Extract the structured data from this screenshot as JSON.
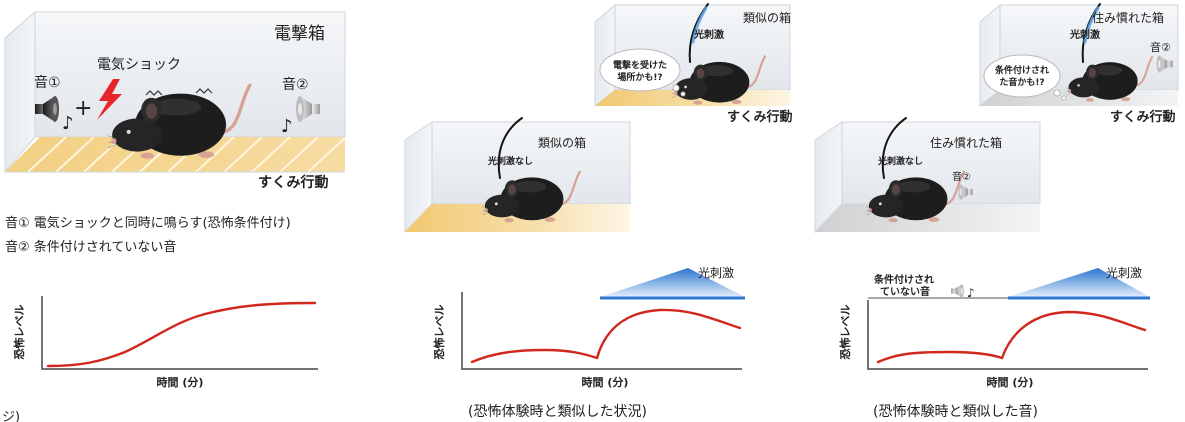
{
  "conditioning": {
    "box_label": "電撃箱",
    "shock_label": "電気ショック",
    "tone1_label": "音①",
    "tone2_label": "音②",
    "plus_sign": "+",
    "note_glyph": "♪",
    "freezing_label": "すくみ行動",
    "legend": [
      "音① 電気ショックと同時に鳴らす(恐怖条件付け)",
      "音② 条件付けされていない音"
    ]
  },
  "similar_box": {
    "light_on": {
      "box_label": "類似の箱",
      "light_label": "光刺激",
      "thought": [
        "電撃を受けた",
        "場所かも!?"
      ],
      "freezing_label": "すくみ行動"
    },
    "light_off": {
      "box_label": "類似の箱",
      "light_label": "光刺激なし"
    },
    "caption": "(恐怖体験時と類似した状況)"
  },
  "familiar_box": {
    "light_on": {
      "box_label": "住み慣れた箱",
      "light_label": "光刺激",
      "tone_label": "音②",
      "thought": [
        "条件付けされ",
        "た音かも!?"
      ],
      "freezing_label": "すくみ行動"
    },
    "light_off": {
      "box_label": "住み慣れた箱",
      "light_label": "光刺激なし",
      "tone_label": "音②"
    },
    "caption": "(恐怖体験時と類似した音)"
  },
  "plots": [
    {
      "ylabel": "恐怖レベル",
      "xlabel": "時間 (分)"
    },
    {
      "ylabel": "恐怖レベル",
      "xlabel": "時間 (分)",
      "stimulus_label": "光刺激"
    },
    {
      "ylabel": "恐怖レベル",
      "xlabel": "時間 (分)",
      "stimulus_label": "光刺激",
      "tone_label": [
        "条件付けされ",
        "ていない音"
      ]
    }
  ],
  "cut_off_text": "ジ)",
  "colors": {
    "fear_curve": "#d0281c",
    "light_stimulus": "#2f78cf",
    "shock": "#e8262a"
  }
}
